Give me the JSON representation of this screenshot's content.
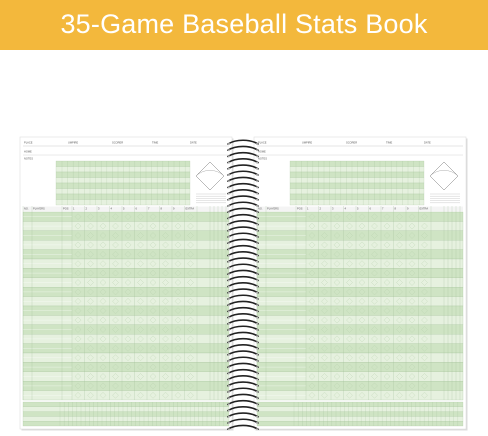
{
  "title": "35-Game Baseball Stats Book",
  "pages": [
    {
      "header_fields": [
        "PLACE",
        "UMPIRE",
        "SCORER",
        "TIME",
        "DATE"
      ],
      "side_labels": [
        "HOME",
        "NOTES"
      ],
      "columns": [
        "NO.",
        "PLAYERS",
        "POS",
        "1",
        "2",
        "3",
        "4",
        "5",
        "6",
        "7",
        "8",
        "9",
        "EXTRA"
      ]
    },
    {
      "header_fields": [
        "PLACE",
        "UMPIRE",
        "SCORER",
        "TIME",
        "DATE"
      ],
      "side_labels": [
        "HOME",
        "NOTES"
      ],
      "columns": [
        "NO.",
        "PLAYERS",
        "POS",
        "1",
        "2",
        "3",
        "4",
        "5",
        "6",
        "7",
        "8",
        "9",
        "EXTRA"
      ]
    }
  ]
}
